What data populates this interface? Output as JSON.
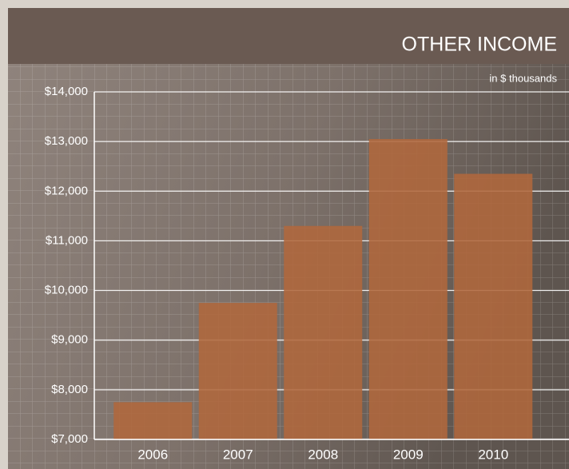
{
  "chart_data": {
    "type": "bar",
    "title": "OTHER INCOME",
    "subtitle": "in $ thousands",
    "categories": [
      "2006",
      "2007",
      "2008",
      "2009",
      "2010"
    ],
    "values": [
      7750,
      9750,
      11300,
      13050,
      12350
    ],
    "color": "#b0683c",
    "ylim": [
      7000,
      14000
    ],
    "yticks": [
      {
        "value": 7000,
        "label": "$7,000"
      },
      {
        "value": 8000,
        "label": "$8,000"
      },
      {
        "value": 9000,
        "label": "$9,000"
      },
      {
        "value": 10000,
        "label": "$10,000"
      },
      {
        "value": 11000,
        "label": "$11,000"
      },
      {
        "value": 12000,
        "label": "$12,000"
      },
      {
        "value": 13000,
        "label": "$13,000"
      },
      {
        "value": 14000,
        "label": "$14,000"
      }
    ],
    "grid": true
  }
}
